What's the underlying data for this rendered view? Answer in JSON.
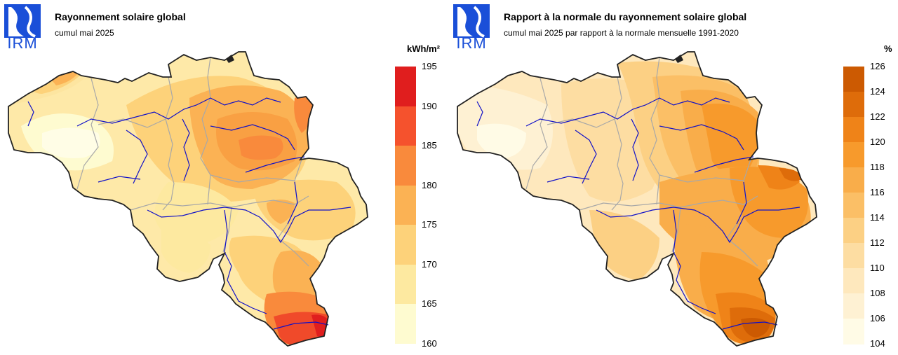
{
  "left_panel": {
    "logo_text": "IRM",
    "title": "Rayonnement solaire global",
    "subtitle": "cumul mai 2025",
    "unit": "kWh/m²",
    "legend": {
      "labels": [
        "195",
        "190",
        "185",
        "180",
        "175",
        "170",
        "165",
        "160"
      ],
      "colors": [
        "#e01e1e",
        "#f5522d",
        "#f98a3c",
        "#fbb254",
        "#fdd27a",
        "#fde9a0",
        "#fefbd0"
      ]
    },
    "accent_hot": "#f04a2a"
  },
  "right_panel": {
    "logo_text": "IRM",
    "title": "Rapport à la normale du rayonnement solaire global",
    "subtitle": "cumul mai 2025 par rapport à la normale mensuelle 1991-2020",
    "unit": "%",
    "legend": {
      "labels": [
        "126",
        "124",
        "122",
        "120",
        "118",
        "116",
        "114",
        "112",
        "110",
        "108",
        "106",
        "104"
      ],
      "colors": [
        "#cc5a02",
        "#de6c0a",
        "#ef8318",
        "#f79a2c",
        "#f9ad4a",
        "#fbbf66",
        "#fcd084",
        "#fddda2",
        "#fee8bd",
        "#fef1d3",
        "#fffbe6"
      ]
    }
  },
  "colors": {
    "logo_blue": "#1a4fd8",
    "border": "#222222",
    "river": "#1010c8",
    "province_border": "#a8a8a8"
  }
}
